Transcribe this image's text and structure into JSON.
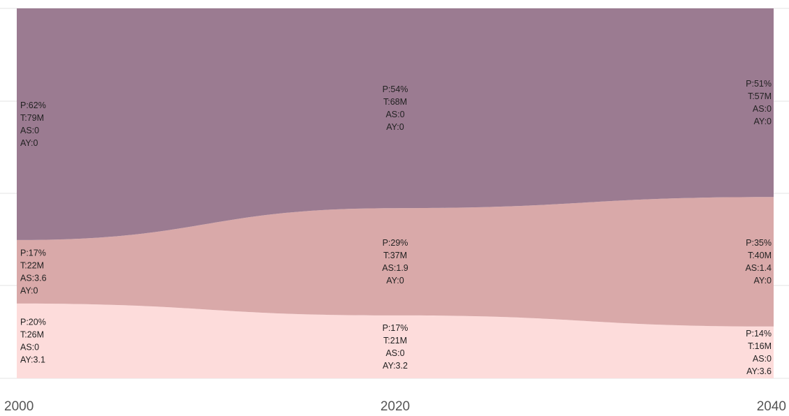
{
  "chart_data": {
    "type": "area",
    "stacked": true,
    "x": [
      2000,
      2020,
      2040
    ],
    "x_tick_labels": [
      "2000",
      "2020",
      "2040"
    ],
    "xlabel": "",
    "ylabel": "",
    "grid": true,
    "series": [
      {
        "color": "#fddcdb",
        "values": [
          20,
          17,
          14
        ],
        "labels": [
          [
            "P:20%",
            "T:26M",
            "AS:0",
            "AY:3.1"
          ],
          [
            "P:17%",
            "T:21M",
            "AS:0",
            "AY:3.2"
          ],
          [
            "P:14%",
            "T:16M",
            "AS:0",
            "AY:3.6"
          ]
        ]
      },
      {
        "color": "#d9a9a9",
        "values": [
          17,
          29,
          35
        ],
        "labels": [
          [
            "P:17%",
            "T:22M",
            "AS:3.6",
            "AY:0"
          ],
          [
            "P:29%",
            "T:37M",
            "AS:1.9",
            "AY:0"
          ],
          [
            "P:35%",
            "T:40M",
            "AS:1.4",
            "AY:0"
          ]
        ]
      },
      {
        "color": "#9b7b91",
        "values": [
          62,
          54,
          51
        ],
        "labels": [
          [
            "P:62%",
            "T:79M",
            "AS:0",
            "AY:0"
          ],
          [
            "P:54%",
            "T:68M",
            "AS:0",
            "AY:0"
          ],
          [
            "P:51%",
            "T:57M",
            "AS:0",
            "AY:0"
          ]
        ]
      }
    ]
  }
}
